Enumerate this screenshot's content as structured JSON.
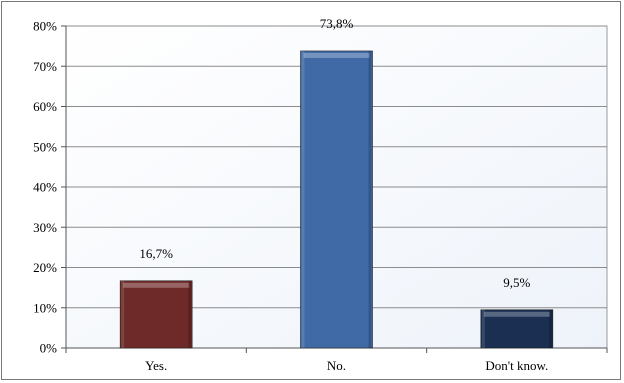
{
  "chart_data": {
    "type": "bar",
    "categories": [
      "Yes.",
      "No.",
      "Don't know."
    ],
    "values": [
      16.7,
      73.8,
      9.5
    ],
    "data_labels": [
      "16,7%",
      "73,8%",
      "9,5%"
    ],
    "colors": [
      "#6e2a28",
      "#3f6aa6",
      "#1a2f52"
    ],
    "ylim": [
      0,
      80
    ],
    "yticks": [
      0,
      10,
      20,
      30,
      40,
      50,
      60,
      70,
      80
    ],
    "ytick_labels": [
      "0%",
      "10%",
      "20%",
      "30%",
      "40%",
      "50%",
      "60%",
      "70%",
      "80%"
    ],
    "grid": true,
    "legend": "none",
    "title": "",
    "xlabel": "",
    "ylabel": ""
  }
}
